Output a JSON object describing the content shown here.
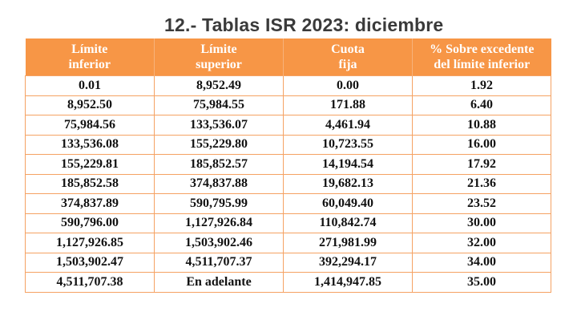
{
  "title": "12.- Tablas ISR 2023: diciembre",
  "table": {
    "headers": [
      {
        "line1": "Límite",
        "line2": "inferior"
      },
      {
        "line1": "Límite",
        "line2": "superior"
      },
      {
        "line1": "Cuota",
        "line2": "fija"
      },
      {
        "line1": "% Sobre excedente",
        "line2": "del límite inferior"
      }
    ],
    "rows": [
      [
        "0.01",
        "8,952.49",
        "0.00",
        "1.92"
      ],
      [
        "8,952.50",
        "75,984.55",
        "171.88",
        "6.40"
      ],
      [
        "75,984.56",
        "133,536.07",
        "4,461.94",
        "10.88"
      ],
      [
        "133,536.08",
        "155,229.80",
        "10,723.55",
        "16.00"
      ],
      [
        "155,229.81",
        "185,852.57",
        "14,194.54",
        "17.92"
      ],
      [
        "185,852.58",
        "374,837.88",
        "19,682.13",
        "21.36"
      ],
      [
        "374,837.89",
        "590,795.99",
        "60,049.40",
        "23.52"
      ],
      [
        "590,796.00",
        "1,127,926.84",
        "110,842.74",
        "30.00"
      ],
      [
        "1,127,926.85",
        "1,503,902.46",
        "271,981.99",
        "32.00"
      ],
      [
        "1,503,902.47",
        "4,511,707.37",
        "392,294.17",
        "34.00"
      ],
      [
        "4,511,707.38",
        "En adelante",
        "1,414,947.85",
        "35.00"
      ]
    ]
  },
  "colors": {
    "header_bg": "#f79646",
    "header_text": "#ffffff",
    "border": "#f5a263",
    "title_text": "#3a3a3a"
  }
}
